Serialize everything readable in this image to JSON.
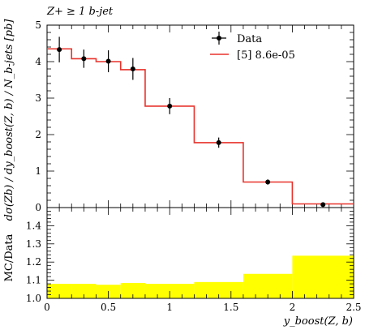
{
  "chart_data": {
    "type": "step+errorbar",
    "title": "Z+ ≥ 1 b-jet",
    "ylabel": "dσ(Zb) / dy_boost(Z, b) / N_b-jets [pb]",
    "xlabel": "y_boost(Z, b)",
    "xlim": [
      0,
      2.5
    ],
    "ylim": [
      0,
      5
    ],
    "xticks": [
      0,
      0.5,
      1,
      1.5,
      2,
      2.5
    ],
    "xtick_labels": [
      "0",
      "0.5",
      "1",
      "1.5",
      "2",
      "2.5"
    ],
    "yticks": [
      0,
      1,
      2,
      3,
      4,
      5
    ],
    "ytick_labels": [
      "0",
      "1",
      "2",
      "3",
      "4",
      "5"
    ],
    "legend": {
      "position": "top-right",
      "entries": [
        {
          "label": "Data",
          "style": "marker-errorbar",
          "color": "#000000"
        },
        {
          "label": "[5] 8.6e-05",
          "style": "line",
          "color": "#e8322b"
        }
      ]
    },
    "data_points": [
      {
        "x": 0.1,
        "y": 4.33,
        "err": 0.35
      },
      {
        "x": 0.3,
        "y": 4.08,
        "err": 0.25
      },
      {
        "x": 0.5,
        "y": 4.01,
        "err": 0.3
      },
      {
        "x": 0.7,
        "y": 3.8,
        "err": 0.3
      },
      {
        "x": 1.0,
        "y": 2.78,
        "err": 0.22
      },
      {
        "x": 1.4,
        "y": 1.78,
        "err": 0.14
      },
      {
        "x": 1.8,
        "y": 0.7,
        "err": 0.07
      },
      {
        "x": 2.25,
        "y": 0.08,
        "err": 0.02
      }
    ],
    "mc_bins": [
      {
        "lo": 0.0,
        "hi": 0.2,
        "y": 4.35
      },
      {
        "lo": 0.2,
        "hi": 0.4,
        "y": 4.08
      },
      {
        "lo": 0.4,
        "hi": 0.6,
        "y": 4.0
      },
      {
        "lo": 0.6,
        "hi": 0.8,
        "y": 3.78
      },
      {
        "lo": 0.8,
        "hi": 1.2,
        "y": 2.78
      },
      {
        "lo": 1.2,
        "hi": 1.6,
        "y": 1.78
      },
      {
        "lo": 1.6,
        "hi": 2.0,
        "y": 0.7
      },
      {
        "lo": 2.0,
        "hi": 2.5,
        "y": 0.1
      }
    ],
    "ratio": {
      "ylabel": "MC/Data",
      "ylim": [
        1.0,
        1.5
      ],
      "yticks": [
        1.0,
        1.1,
        1.2,
        1.3,
        1.4
      ],
      "ytick_labels": [
        "1.0",
        "1.1",
        "1.2",
        "1.3",
        "1.4"
      ],
      "band_color": "#ffff00",
      "bins": [
        {
          "lo": 0.0,
          "hi": 0.2,
          "y": 1.08
        },
        {
          "lo": 0.2,
          "hi": 0.4,
          "y": 1.08
        },
        {
          "lo": 0.4,
          "hi": 0.6,
          "y": 1.075
        },
        {
          "lo": 0.6,
          "hi": 0.8,
          "y": 1.085
        },
        {
          "lo": 0.8,
          "hi": 1.2,
          "y": 1.08
        },
        {
          "lo": 1.2,
          "hi": 1.6,
          "y": 1.09
        },
        {
          "lo": 1.6,
          "hi": 2.0,
          "y": 1.135
        },
        {
          "lo": 2.0,
          "hi": 2.5,
          "y": 1.235
        }
      ]
    }
  }
}
